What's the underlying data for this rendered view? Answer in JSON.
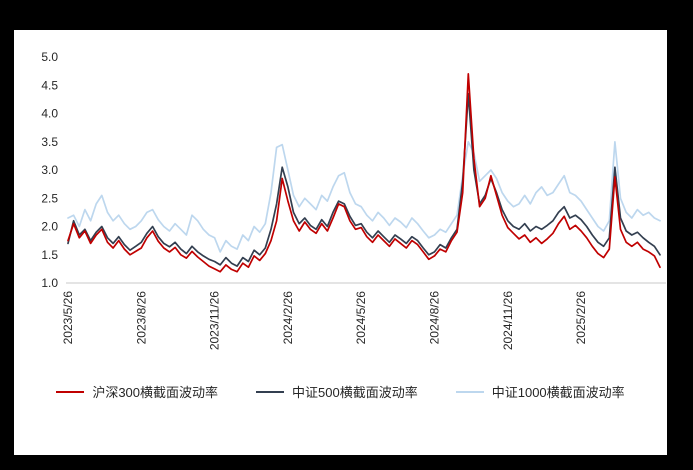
{
  "chart_data": {
    "type": "line",
    "title": "",
    "xlabel": "",
    "ylabel": "",
    "grid": false,
    "legend_position": "bottom",
    "ylim": [
      1.0,
      5.0
    ],
    "y_ticks": [
      5.0,
      4.5,
      4.0,
      3.5,
      3.0,
      2.5,
      2.0,
      1.5,
      1.0
    ],
    "y_tick_labels": [
      "5.0",
      "4.5",
      "4.0",
      "3.5",
      "3.0",
      "2.5",
      "2.0",
      "1.5",
      "1.0"
    ],
    "n_points": 106,
    "x_tick_indices": [
      0,
      13,
      26,
      39,
      52,
      65,
      78,
      91
    ],
    "x_tick_labels": [
      "2023/5/26",
      "2023/8/26",
      "2023/11/26",
      "2024/2/26",
      "2024/5/26",
      "2024/8/26",
      "2024/11/26",
      "2025/2/26"
    ],
    "axis_color": "#c9c9c9",
    "series": [
      {
        "id": "hs300",
        "name": "沪深300横截面波动率",
        "color": "#c00000",
        "values": [
          1.75,
          2.05,
          1.8,
          1.92,
          1.7,
          1.85,
          1.95,
          1.72,
          1.62,
          1.75,
          1.6,
          1.5,
          1.56,
          1.62,
          1.8,
          1.92,
          1.74,
          1.62,
          1.55,
          1.63,
          1.5,
          1.44,
          1.56,
          1.46,
          1.38,
          1.3,
          1.25,
          1.2,
          1.32,
          1.24,
          1.2,
          1.35,
          1.28,
          1.48,
          1.4,
          1.52,
          1.75,
          2.1,
          2.85,
          2.45,
          2.1,
          1.92,
          2.08,
          1.95,
          1.88,
          2.05,
          1.92,
          2.15,
          2.4,
          2.35,
          2.1,
          1.95,
          1.98,
          1.82,
          1.72,
          1.85,
          1.75,
          1.65,
          1.78,
          1.7,
          1.62,
          1.75,
          1.68,
          1.55,
          1.42,
          1.48,
          1.6,
          1.55,
          1.75,
          1.9,
          2.6,
          4.7,
          3.2,
          2.35,
          2.5,
          2.9,
          2.55,
          2.2,
          1.98,
          1.88,
          1.78,
          1.85,
          1.72,
          1.8,
          1.7,
          1.78,
          1.88,
          2.05,
          2.18,
          1.95,
          2.02,
          1.92,
          1.8,
          1.65,
          1.52,
          1.45,
          1.6,
          2.88,
          1.95,
          1.72,
          1.65,
          1.72,
          1.6,
          1.55,
          1.48,
          1.28
        ]
      },
      {
        "id": "zz500",
        "name": "中证500横截面波动率",
        "color": "#333f50",
        "values": [
          1.7,
          2.1,
          1.85,
          1.95,
          1.75,
          1.9,
          2.0,
          1.8,
          1.7,
          1.82,
          1.68,
          1.58,
          1.65,
          1.72,
          1.88,
          2.0,
          1.82,
          1.7,
          1.64,
          1.72,
          1.6,
          1.52,
          1.65,
          1.55,
          1.48,
          1.42,
          1.38,
          1.32,
          1.45,
          1.35,
          1.3,
          1.45,
          1.38,
          1.58,
          1.5,
          1.62,
          1.95,
          2.4,
          3.05,
          2.7,
          2.25,
          2.05,
          2.15,
          2.02,
          1.95,
          2.12,
          2.0,
          2.25,
          2.45,
          2.4,
          2.18,
          2.02,
          2.05,
          1.9,
          1.8,
          1.92,
          1.82,
          1.72,
          1.85,
          1.78,
          1.7,
          1.82,
          1.75,
          1.62,
          1.5,
          1.55,
          1.68,
          1.62,
          1.8,
          1.95,
          2.8,
          4.35,
          3.0,
          2.4,
          2.55,
          2.85,
          2.6,
          2.3,
          2.1,
          2.0,
          1.95,
          2.05,
          1.92,
          2.0,
          1.95,
          2.02,
          2.1,
          2.25,
          2.35,
          2.15,
          2.2,
          2.12,
          2.0,
          1.85,
          1.72,
          1.65,
          1.8,
          3.05,
          2.15,
          1.92,
          1.85,
          1.9,
          1.8,
          1.72,
          1.65,
          1.5
        ]
      },
      {
        "id": "zz1000",
        "name": "中证1000横截面波动率",
        "color": "#bdd7ee",
        "values": [
          2.15,
          2.2,
          2.0,
          2.3,
          2.1,
          2.4,
          2.55,
          2.25,
          2.1,
          2.2,
          2.05,
          1.95,
          2.0,
          2.1,
          2.25,
          2.3,
          2.12,
          2.0,
          1.92,
          2.05,
          1.95,
          1.85,
          2.2,
          2.1,
          1.95,
          1.85,
          1.8,
          1.55,
          1.75,
          1.65,
          1.6,
          1.85,
          1.75,
          2.0,
          1.9,
          2.05,
          2.6,
          3.4,
          3.45,
          3.0,
          2.55,
          2.35,
          2.5,
          2.4,
          2.3,
          2.55,
          2.45,
          2.7,
          2.9,
          2.95,
          2.6,
          2.4,
          2.35,
          2.2,
          2.1,
          2.25,
          2.15,
          2.02,
          2.15,
          2.08,
          1.98,
          2.15,
          2.05,
          1.92,
          1.8,
          1.85,
          1.95,
          1.9,
          2.05,
          2.2,
          2.9,
          3.5,
          3.3,
          2.8,
          2.9,
          3.0,
          2.85,
          2.6,
          2.45,
          2.35,
          2.4,
          2.55,
          2.4,
          2.6,
          2.7,
          2.55,
          2.6,
          2.75,
          2.9,
          2.6,
          2.55,
          2.45,
          2.3,
          2.15,
          2.0,
          1.92,
          2.1,
          3.5,
          2.5,
          2.25,
          2.15,
          2.3,
          2.2,
          2.25,
          2.15,
          2.1
        ]
      }
    ]
  }
}
